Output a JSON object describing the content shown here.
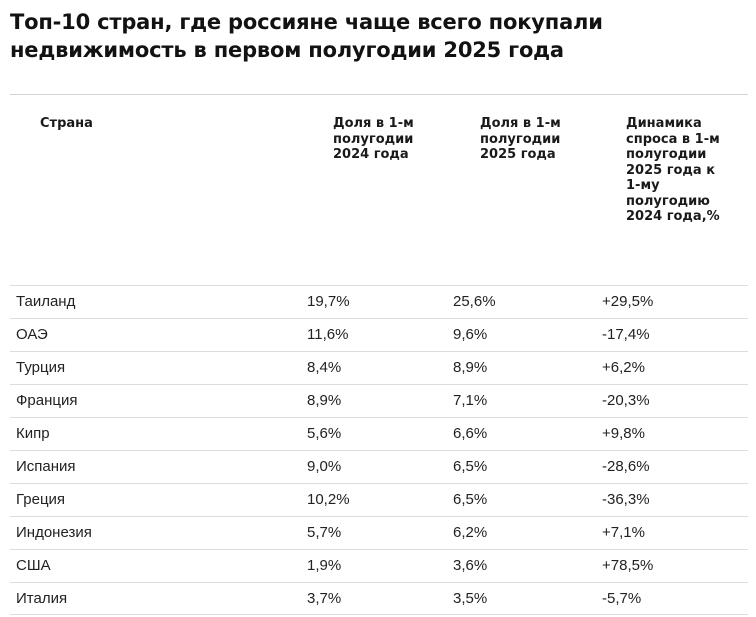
{
  "title": "Топ-10 стран, где россияне чаще всего покупали недвижимость в первом полугодии 2025 года",
  "table": {
    "headers": [
      "Страна",
      "Доля в 1-м полугодии 2024 года",
      "Доля в 1-м полугодии 2025 года",
      "Динамика спроса в 1-м полугодии 2025 года к 1-му полугодию 2024 года,%"
    ],
    "rows": [
      {
        "country": "Таиланд",
        "share_2024": "19,7%",
        "share_2025": "25,6%",
        "dynamics": "+29,5%"
      },
      {
        "country": "ОАЭ",
        "share_2024": "11,6%",
        "share_2025": "9,6%",
        "dynamics": "-17,4%"
      },
      {
        "country": "Турция",
        "share_2024": "8,4%",
        "share_2025": "8,9%",
        "dynamics": "+6,2%"
      },
      {
        "country": "Франция",
        "share_2024": "8,9%",
        "share_2025": "7,1%",
        "dynamics": "-20,3%"
      },
      {
        "country": "Кипр",
        "share_2024": "5,6%",
        "share_2025": "6,6%",
        "dynamics": "+9,8%"
      },
      {
        "country": "Испания",
        "share_2024": "9,0%",
        "share_2025": "6,5%",
        "dynamics": "-28,6%"
      },
      {
        "country": "Греция",
        "share_2024": "10,2%",
        "share_2025": "6,5%",
        "dynamics": "-36,3%"
      },
      {
        "country": "Индонезия",
        "share_2024": "5,7%",
        "share_2025": "6,2%",
        "dynamics": "+7,1%"
      },
      {
        "country": "США",
        "share_2024": "1,9%",
        "share_2025": "3,6%",
        "dynamics": "+78,5%"
      },
      {
        "country": "Италия",
        "share_2024": "3,7%",
        "share_2025": "3,5%",
        "dynamics": "-5,7%"
      }
    ]
  }
}
